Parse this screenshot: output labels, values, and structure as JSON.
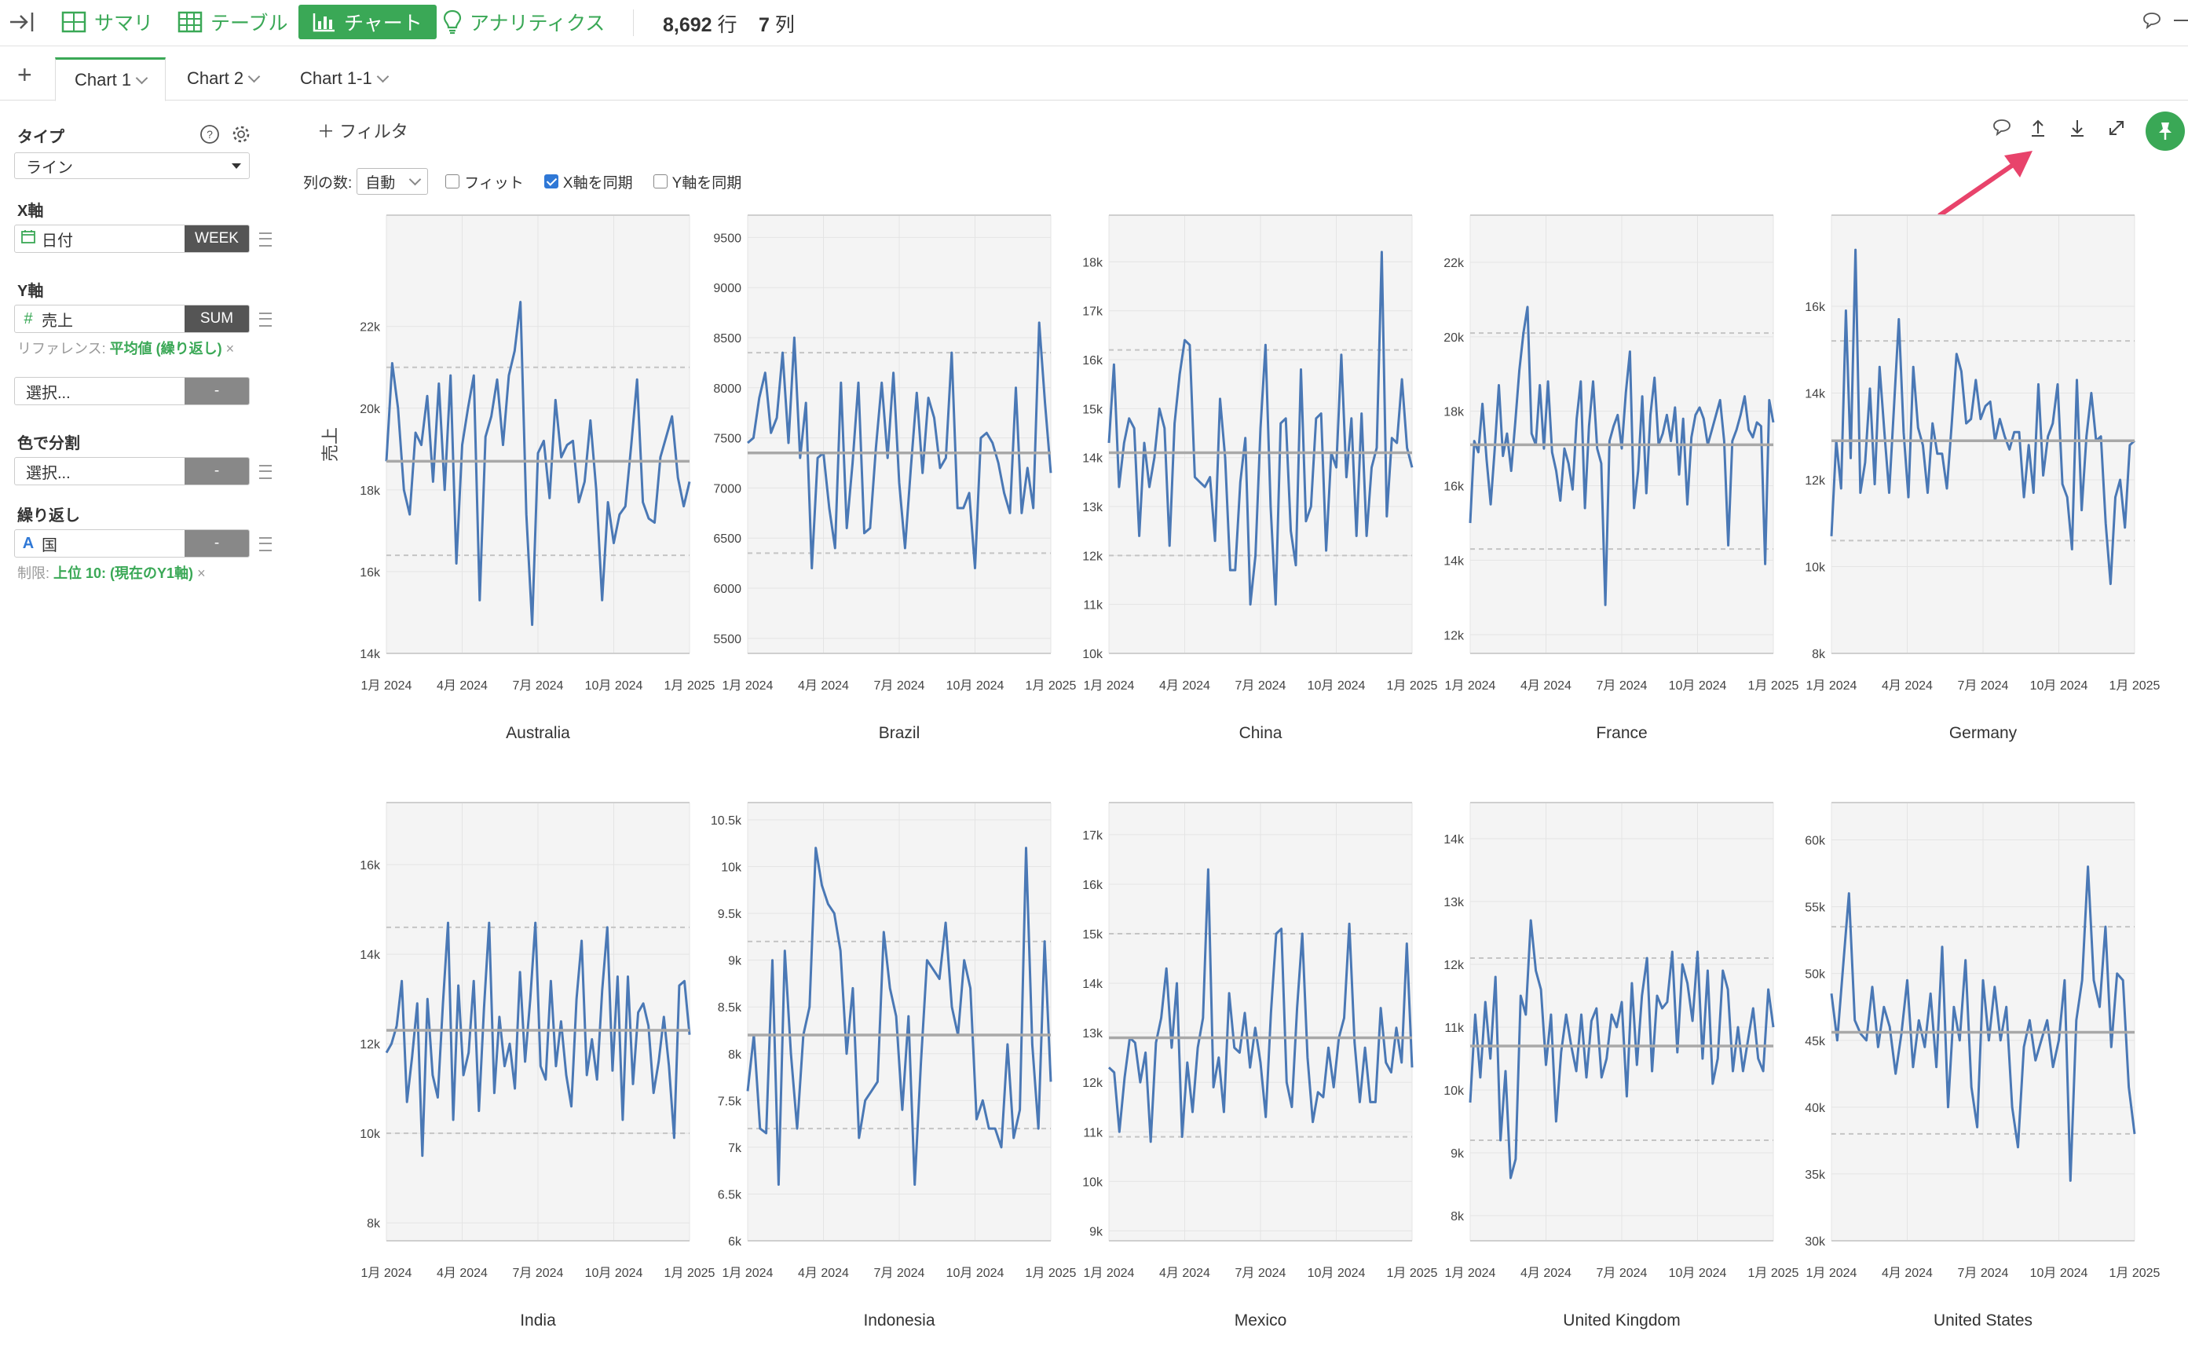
{
  "topbar": {
    "summary": "サマリ",
    "table": "テーブル",
    "chart": "チャート",
    "analytics": "アナリティクス",
    "rows_count": "8,692",
    "rows_unit": "行",
    "cols_count": "7",
    "cols_unit": "列"
  },
  "tabs": [
    {
      "label": "Chart 1",
      "active": true
    },
    {
      "label": "Chart 2",
      "active": false
    },
    {
      "label": "Chart 1-1",
      "active": false
    }
  ],
  "panel": {
    "type_label": "タイプ",
    "type_value": "ライン",
    "x_label": "X軸",
    "x_field": "日付",
    "x_agg": "WEEK",
    "y_label": "Y軸",
    "y_field": "売上",
    "y_agg": "SUM",
    "reference_prefix": "リファレンス:",
    "reference_value": "平均値 (繰り返し)",
    "y2_placeholder": "選択...",
    "y2_agg": "-",
    "color_label": "色で分割",
    "color_placeholder": "選択...",
    "color_agg": "-",
    "repeat_label": "繰り返し",
    "repeat_field": "国",
    "repeat_agg": "-",
    "limit_prefix": "制限:",
    "limit_value": "上位 10: (現在のY1軸)",
    "remove_symbol": "×"
  },
  "toolbar": {
    "filter_label": "フィルタ",
    "cols_label": "列の数:",
    "cols_value": "自動",
    "fit_label": "フィット",
    "sync_x_label": "X軸を同期",
    "sync_y_label": "Y軸を同期",
    "fit_checked": false,
    "sync_x_checked": true,
    "sync_y_checked": false
  },
  "colors": {
    "accent": "#3aa856",
    "line": "#4a78b5",
    "arrow": "#e8436b"
  },
  "chart_data": {
    "type": "line",
    "ylabel": "売上",
    "x_ticks": [
      "1月 2024",
      "4月 2024",
      "7月 2024",
      "10月 2024",
      "1月 2025"
    ],
    "reference": "average",
    "facets": [
      {
        "name": "Australia",
        "yticks": [
          {
            "v": 14000,
            "l": "14k"
          },
          {
            "v": 16000,
            "l": "16k"
          },
          {
            "v": 18000,
            "l": "18k"
          },
          {
            "v": 20000,
            "l": "20k"
          },
          {
            "v": 22000,
            "l": "22k"
          }
        ],
        "ymin": 14000,
        "ymax": 24300,
        "avg": 18700,
        "band": [
          16400,
          21000
        ],
        "values": [
          18700,
          21100,
          20000,
          18000,
          17400,
          19400,
          19100,
          20300,
          18200,
          20600,
          18000,
          20800,
          16200,
          19100,
          20000,
          20800,
          15300,
          19300,
          19800,
          20700,
          19100,
          20800,
          21400,
          22600,
          17400,
          14700,
          18900,
          19200,
          17800,
          20200,
          18800,
          19100,
          19200,
          17700,
          18200,
          19700,
          18000,
          15300,
          17700,
          16700,
          17400,
          17600,
          19100,
          20700,
          17700,
          17300,
          17200,
          18800,
          19300,
          19800,
          18300,
          17600,
          18200
        ]
      },
      {
        "name": "Brazil",
        "yticks": [
          {
            "v": 5500,
            "l": "5500"
          },
          {
            "v": 6000,
            "l": "6000"
          },
          {
            "v": 6500,
            "l": "6500"
          },
          {
            "v": 7000,
            "l": "7000"
          },
          {
            "v": 7500,
            "l": "7500"
          },
          {
            "v": 8000,
            "l": "8000"
          },
          {
            "v": 8500,
            "l": "8500"
          },
          {
            "v": 9000,
            "l": "9000"
          },
          {
            "v": 9500,
            "l": "9500"
          }
        ],
        "ymin": 5350,
        "ymax": 9550,
        "avg": 7350,
        "band": [
          6350,
          8350
        ],
        "values": [
          7450,
          7500,
          7900,
          8150,
          7550,
          7700,
          8350,
          7450,
          8500,
          7300,
          7850,
          6200,
          7300,
          7350,
          6800,
          6400,
          8050,
          6600,
          7250,
          8050,
          6550,
          6600,
          7400,
          8050,
          7300,
          8150,
          7050,
          6400,
          7200,
          7950,
          7150,
          7900,
          7700,
          7200,
          7300,
          8350,
          6800,
          6800,
          6950,
          6200,
          7500,
          7550,
          7450,
          7250,
          6950,
          6750,
          8000,
          6750,
          7200,
          6800,
          8650,
          7850,
          7150
        ]
      },
      {
        "name": "China",
        "yticks": [
          {
            "v": 10000,
            "l": "10k"
          },
          {
            "v": 11000,
            "l": "11k"
          },
          {
            "v": 12000,
            "l": "12k"
          },
          {
            "v": 13000,
            "l": "13k"
          },
          {
            "v": 14000,
            "l": "14k"
          },
          {
            "v": 15000,
            "l": "15k"
          },
          {
            "v": 16000,
            "l": "16k"
          },
          {
            "v": 17000,
            "l": "17k"
          },
          {
            "v": 18000,
            "l": "18k"
          }
        ],
        "ymin": 10000,
        "ymax": 18600,
        "avg": 14100,
        "band": [
          12000,
          16200
        ],
        "values": [
          14300,
          15900,
          13400,
          14300,
          14800,
          14600,
          12400,
          14300,
          13400,
          14000,
          15000,
          14600,
          12200,
          14700,
          15700,
          16400,
          16300,
          13600,
          13500,
          13400,
          13600,
          12300,
          15200,
          14000,
          11700,
          11700,
          13500,
          14400,
          11000,
          12000,
          14600,
          16300,
          13000,
          11000,
          14700,
          14800,
          12500,
          11800,
          15800,
          12700,
          13000,
          14800,
          14900,
          12100,
          14100,
          13800,
          16100,
          13600,
          14800,
          12400,
          14900,
          12400,
          13800,
          14200,
          18200,
          12800,
          14400,
          14300,
          15600,
          14200,
          13800
        ]
      },
      {
        "name": "France",
        "yticks": [
          {
            "v": 12000,
            "l": "12k"
          },
          {
            "v": 14000,
            "l": "14k"
          },
          {
            "v": 16000,
            "l": "16k"
          },
          {
            "v": 18000,
            "l": "18k"
          },
          {
            "v": 20000,
            "l": "20k"
          },
          {
            "v": 22000,
            "l": "22k"
          }
        ],
        "ymin": 11500,
        "ymax": 22800,
        "avg": 17100,
        "band": [
          14300,
          20100
        ],
        "values": [
          15000,
          17200,
          16900,
          18200,
          16700,
          15500,
          17000,
          18700,
          16800,
          17400,
          16400,
          17700,
          19100,
          20100,
          20800,
          17400,
          17100,
          18700,
          17000,
          18800,
          16900,
          16400,
          15600,
          17000,
          16600,
          15900,
          17800,
          18800,
          15400,
          17600,
          18800,
          17000,
          16600,
          12800,
          17200,
          17600,
          17900,
          17000,
          18500,
          19600,
          15400,
          16400,
          18400,
          15800,
          17900,
          18900,
          17100,
          17400,
          17900,
          17200,
          18100,
          16300,
          17800,
          15500,
          17300,
          17900,
          18100,
          17800,
          17100,
          17500,
          17900,
          18300,
          17200,
          14400,
          17200,
          17500,
          17900,
          18400,
          17500,
          17300,
          17700,
          17600,
          13900,
          18300,
          17700
        ]
      },
      {
        "name": "Germany",
        "yticks": [
          {
            "v": 8000,
            "l": "8k"
          },
          {
            "v": 10000,
            "l": "10k"
          },
          {
            "v": 12000,
            "l": "12k"
          },
          {
            "v": 14000,
            "l": "14k"
          },
          {
            "v": 16000,
            "l": "16k"
          }
        ],
        "ymin": 8000,
        "ymax": 17700,
        "avg": 12900,
        "band": [
          10600,
          15200
        ],
        "values": [
          10700,
          12900,
          11800,
          15900,
          12500,
          17300,
          11700,
          12400,
          14100,
          11900,
          14600,
          13100,
          11700,
          13700,
          15700,
          13100,
          11600,
          14600,
          13200,
          12800,
          11700,
          13300,
          12600,
          12600,
          11800,
          13300,
          14900,
          14500,
          13300,
          13400,
          14300,
          13400,
          13700,
          13800,
          12900,
          13400,
          13000,
          12700,
          13100,
          13100,
          11600,
          12800,
          11700,
          14200,
          12100,
          13000,
          13300,
          14200,
          11900,
          11600,
          10400,
          14300,
          11300,
          13000,
          14000,
          12900,
          13000,
          11000,
          9600,
          11600,
          12000,
          10900,
          12800,
          12900
        ]
      },
      {
        "name": "India",
        "yticks": [
          {
            "v": 8000,
            "l": "8k"
          },
          {
            "v": 10000,
            "l": "10k"
          },
          {
            "v": 12000,
            "l": "12k"
          },
          {
            "v": 14000,
            "l": "14k"
          },
          {
            "v": 16000,
            "l": "16k"
          }
        ],
        "ymin": 7600,
        "ymax": 17000,
        "avg": 12300,
        "band": [
          10000,
          14600
        ],
        "values": [
          11800,
          12000,
          12400,
          13400,
          10700,
          11700,
          12900,
          9500,
          13000,
          11300,
          10800,
          12900,
          14700,
          10300,
          13300,
          11300,
          11800,
          13400,
          10500,
          12800,
          14700,
          10900,
          12600,
          11500,
          12000,
          11000,
          13600,
          11600,
          13000,
          14700,
          11500,
          11200,
          13400,
          11500,
          12500,
          11300,
          10600,
          13000,
          14300,
          11300,
          12100,
          11200,
          13200,
          14600,
          11400,
          13500,
          10300,
          13500,
          11100,
          12700,
          12900,
          12400,
          10900,
          11600,
          12600,
          11500,
          9900,
          13300,
          13400,
          12200
        ]
      },
      {
        "name": "Indonesia",
        "yticks": [
          {
            "v": 6000,
            "l": "6k"
          },
          {
            "v": 6500,
            "l": "6.5k"
          },
          {
            "v": 7000,
            "l": "7k"
          },
          {
            "v": 7500,
            "l": "7.5k"
          },
          {
            "v": 8000,
            "l": "8k"
          },
          {
            "v": 8500,
            "l": "8.5k"
          },
          {
            "v": 9000,
            "l": "9k"
          },
          {
            "v": 9500,
            "l": "9.5k"
          },
          {
            "v": 10000,
            "l": "10k"
          },
          {
            "v": 10500,
            "l": "10.5k"
          }
        ],
        "ymin": 6000,
        "ymax": 10500,
        "avg": 8200,
        "band": [
          7200,
          9200
        ],
        "values": [
          7600,
          8200,
          7200,
          7150,
          9000,
          6600,
          9100,
          8000,
          7200,
          8200,
          8500,
          10200,
          9800,
          9600,
          9500,
          9100,
          8000,
          8700,
          7100,
          7500,
          7600,
          7700,
          9300,
          8700,
          8400,
          7400,
          8400,
          6600,
          7900,
          9000,
          8900,
          8800,
          9400,
          8500,
          8200,
          9000,
          8700,
          7300,
          7500,
          7200,
          7200,
          7000,
          8100,
          7100,
          7400,
          10200,
          8100,
          7200,
          9200,
          7700
        ]
      },
      {
        "name": "Mexico",
        "yticks": [
          {
            "v": 9000,
            "l": "9k"
          },
          {
            "v": 10000,
            "l": "10k"
          },
          {
            "v": 11000,
            "l": "11k"
          },
          {
            "v": 12000,
            "l": "12k"
          },
          {
            "v": 13000,
            "l": "13k"
          },
          {
            "v": 14000,
            "l": "14k"
          },
          {
            "v": 15000,
            "l": "15k"
          },
          {
            "v": 16000,
            "l": "16k"
          },
          {
            "v": 17000,
            "l": "17k"
          }
        ],
        "ymin": 8800,
        "ymax": 17300,
        "avg": 12900,
        "band": [
          10900,
          15000
        ],
        "values": [
          12300,
          12200,
          11000,
          12100,
          12900,
          12800,
          12000,
          12600,
          10800,
          12800,
          13300,
          14300,
          12700,
          14000,
          10900,
          12400,
          11400,
          12700,
          13300,
          16300,
          11900,
          12500,
          11400,
          13800,
          12700,
          12600,
          13400,
          12300,
          13100,
          12400,
          11300,
          13400,
          15000,
          15100,
          12000,
          11500,
          13500,
          15000,
          12500,
          11200,
          11800,
          11700,
          12700,
          11900,
          12900,
          13300,
          15200,
          12800,
          11600,
          12700,
          11600,
          11600,
          13500,
          12400,
          12200,
          13100,
          12400,
          14800,
          12300
        ]
      },
      {
        "name": "United Kingdom",
        "yticks": [
          {
            "v": 8000,
            "l": "8k"
          },
          {
            "v": 9000,
            "l": "9k"
          },
          {
            "v": 10000,
            "l": "10k"
          },
          {
            "v": 11000,
            "l": "11k"
          },
          {
            "v": 12000,
            "l": "12k"
          },
          {
            "v": 13000,
            "l": "13k"
          },
          {
            "v": 14000,
            "l": "14k"
          }
        ],
        "ymin": 7600,
        "ymax": 14300,
        "avg": 10700,
        "band": [
          9200,
          12100
        ],
        "values": [
          9800,
          11200,
          10200,
          11400,
          10500,
          11800,
          9200,
          10300,
          8600,
          8900,
          11500,
          11200,
          12700,
          11900,
          11600,
          10400,
          11200,
          9500,
          10600,
          11200,
          10700,
          10300,
          11200,
          10200,
          11100,
          11300,
          10200,
          10500,
          11200,
          11000,
          11400,
          9900,
          11700,
          10400,
          11500,
          12100,
          10300,
          11500,
          11300,
          11400,
          12200,
          10600,
          12000,
          11700,
          11100,
          12200,
          10500,
          11900,
          10100,
          10500,
          11900,
          11600,
          10300,
          11000,
          10300,
          10800,
          11300,
          10500,
          10300,
          11600,
          11000
        ]
      },
      {
        "name": "United States",
        "yticks": [
          {
            "v": 30000,
            "l": "30k"
          },
          {
            "v": 35000,
            "l": "35k"
          },
          {
            "v": 40000,
            "l": "40k"
          },
          {
            "v": 45000,
            "l": "45k"
          },
          {
            "v": 50000,
            "l": "50k"
          },
          {
            "v": 55000,
            "l": "55k"
          },
          {
            "v": 60000,
            "l": "60k"
          }
        ],
        "ymin": 30000,
        "ymax": 61500,
        "avg": 45600,
        "band": [
          38000,
          53500
        ],
        "values": [
          48500,
          45000,
          50500,
          56000,
          46500,
          45500,
          45000,
          49000,
          44500,
          47500,
          46000,
          42500,
          45500,
          49500,
          43000,
          46500,
          44500,
          48500,
          43000,
          52000,
          40000,
          47500,
          45000,
          51000,
          41500,
          38500,
          49500,
          45000,
          49000,
          45000,
          47500,
          40000,
          37000,
          44500,
          46500,
          43500,
          45000,
          46500,
          43000,
          45000,
          49500,
          34500,
          46500,
          49500,
          58000,
          49500,
          47500,
          53500,
          44500,
          50000,
          49500,
          41500,
          38000
        ]
      }
    ]
  }
}
